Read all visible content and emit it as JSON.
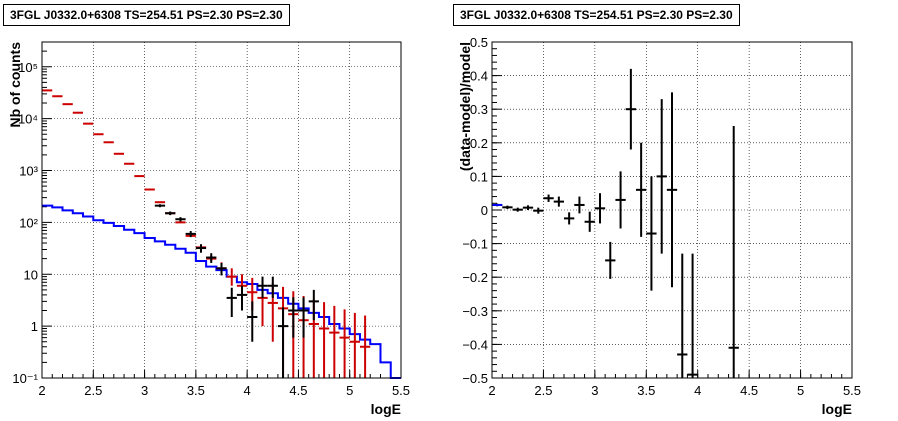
{
  "chart_data": [
    {
      "type": "line",
      "title": "3FGL J0332.0+6308 TS=254.51 PS=2.30 PS=2.30",
      "xlabel": "logE",
      "ylabel": "Nb of counts",
      "xlim": [
        2,
        5.5
      ],
      "ylim": [
        0.1,
        300000
      ],
      "yscale": "log",
      "grid": true,
      "x_ticks": [
        "2",
        "2.5",
        "3",
        "3.5",
        "4",
        "4.5",
        "5",
        "5.5"
      ],
      "y_ticks": [
        {
          "value": 0.1,
          "label": "10⁻¹"
        },
        {
          "value": 1,
          "label": "1"
        },
        {
          "value": 10,
          "label": "10"
        },
        {
          "value": 100,
          "label": "10²"
        },
        {
          "value": 1000,
          "label": "10³"
        },
        {
          "value": 10000,
          "label": "10⁴"
        },
        {
          "value": 100000,
          "label": "10⁵"
        }
      ],
      "series": [
        {
          "color": "#0000ff",
          "type": "step",
          "bin_width": 0.1,
          "x": [
            2.0,
            2.1,
            2.2,
            2.3,
            2.4,
            2.5,
            2.6,
            2.7,
            2.8,
            2.9,
            3.0,
            3.1,
            3.2,
            3.3,
            3.4,
            3.5,
            3.6,
            3.7,
            3.8,
            3.9,
            4.0,
            4.1,
            4.2,
            4.3,
            4.4,
            4.5,
            4.6,
            4.7,
            4.8,
            4.9,
            5.0,
            5.1,
            5.2,
            5.3,
            5.4
          ],
          "values": [
            210,
            195,
            170,
            150,
            130,
            110,
            98,
            85,
            72,
            62,
            50,
            43,
            37,
            31,
            26,
            18,
            14,
            12,
            9,
            7,
            6.5,
            5,
            4.3,
            3.5,
            2.7,
            2.2,
            1.8,
            1.5,
            1.1,
            0.9,
            0.7,
            0.55,
            0.45,
            0.2,
            0.1
          ]
        },
        {
          "color": "#cc0000",
          "type": "errorbar",
          "x": [
            2.05,
            2.15,
            2.25,
            2.35,
            2.45,
            2.55,
            2.65,
            2.75,
            2.85,
            2.95,
            3.05,
            3.15,
            3.25,
            3.35,
            3.45,
            3.55,
            3.65,
            3.75,
            3.85,
            3.95,
            4.05,
            4.15,
            4.25,
            4.35,
            4.45,
            4.55,
            4.65,
            4.75,
            4.85,
            4.95,
            5.05,
            5.15
          ],
          "values": [
            35000,
            27000,
            19000,
            13000,
            8000,
            5000,
            3500,
            2100,
            1350,
            780,
            430,
            245,
            150,
            100,
            55,
            33,
            20,
            13,
            9,
            6,
            4.5,
            3.5,
            2.8,
            2.2,
            1.7,
            1.3,
            1.1,
            0.9,
            0.75,
            0.6,
            0.5,
            0.4
          ],
          "errors_low": [
            0,
            0,
            0,
            0,
            0,
            0,
            0,
            0,
            0,
            0,
            0,
            0,
            0,
            0,
            0,
            3,
            2,
            3,
            3,
            3,
            2.5,
            2.5,
            2.3,
            2.1,
            1.7,
            1.3,
            1.1,
            0.9,
            0.75,
            0.6,
            0.5,
            0.4
          ],
          "errors_high": [
            0,
            0,
            0,
            0,
            0,
            0,
            0,
            0,
            0,
            0,
            0,
            0,
            0,
            0,
            0,
            3,
            3,
            4,
            4,
            4,
            4,
            4,
            4,
            3.5,
            3,
            2.5,
            2.2,
            2,
            1.7,
            1.5,
            1.3,
            1.2
          ]
        },
        {
          "color": "#000000",
          "type": "errorbar",
          "x": [
            3.15,
            3.25,
            3.35,
            3.45,
            3.55,
            3.65,
            3.75,
            3.85,
            3.95,
            4.05,
            4.15,
            4.25,
            4.35,
            4.45,
            4.55,
            4.65
          ],
          "values": [
            210,
            150,
            115,
            60,
            32,
            21,
            13,
            3.5,
            4,
            1.5,
            6,
            6,
            1,
            2,
            2,
            3
          ],
          "errors_low": [
            14,
            12,
            11,
            8,
            6,
            4.5,
            3.5,
            2,
            2,
            1,
            2.5,
            2.5,
            1,
            1.4,
            1.4,
            1.7
          ],
          "errors_high": [
            14,
            12,
            11,
            8,
            6,
            4.5,
            3.5,
            2,
            2,
            1.5,
            3,
            3,
            1.3,
            1.6,
            1.6,
            2
          ]
        }
      ]
    },
    {
      "type": "scatter",
      "title": "3FGL J0332.0+6308 TS=254.51 PS=2.30 PS=2.30",
      "xlabel": "logE",
      "ylabel": "(data-model)/model",
      "xlim": [
        2,
        5.5
      ],
      "ylim": [
        -0.5,
        0.5
      ],
      "grid": true,
      "x_ticks": [
        "2",
        "2.5",
        "3",
        "3.5",
        "4",
        "4.5",
        "5",
        "5.5"
      ],
      "y_ticks": [
        "−0.5",
        "−0.4",
        "−0.3",
        "−0.2",
        "−0.1",
        "0",
        "0.1",
        "0.2",
        "0.3",
        "0.4",
        "0.5"
      ],
      "y_tick_values": [
        -0.5,
        -0.4,
        -0.3,
        -0.2,
        -0.1,
        0,
        0.1,
        0.2,
        0.3,
        0.4,
        0.5
      ],
      "series": [
        {
          "color": "#000000",
          "type": "errorbar",
          "x": [
            2.05,
            2.15,
            2.25,
            2.35,
            2.45,
            2.55,
            2.65,
            2.75,
            2.85,
            2.95,
            3.05,
            3.15,
            3.25,
            3.35,
            3.45,
            3.55,
            3.65,
            3.75,
            3.85,
            3.95,
            4.35
          ],
          "values": [
            0.015,
            0.008,
            0.001,
            0.007,
            -0.002,
            0.035,
            0.025,
            -0.025,
            0.015,
            -0.035,
            0.005,
            -0.15,
            0.03,
            0.3,
            0.06,
            -0.07,
            0.1,
            0.06,
            -0.43,
            -0.49,
            -0.41
          ],
          "errors": [
            0.004,
            0.005,
            0.006,
            0.007,
            0.009,
            0.011,
            0.015,
            0.018,
            0.025,
            0.03,
            0.045,
            0.055,
            0.085,
            0.12,
            0.14,
            0.17,
            0.23,
            0.29,
            0.3,
            0.36,
            0.66
          ]
        },
        {
          "color": "#0000ff",
          "type": "line",
          "x": [
            2.0,
            2.1
          ],
          "values": [
            0.015,
            0.015
          ]
        }
      ]
    }
  ]
}
